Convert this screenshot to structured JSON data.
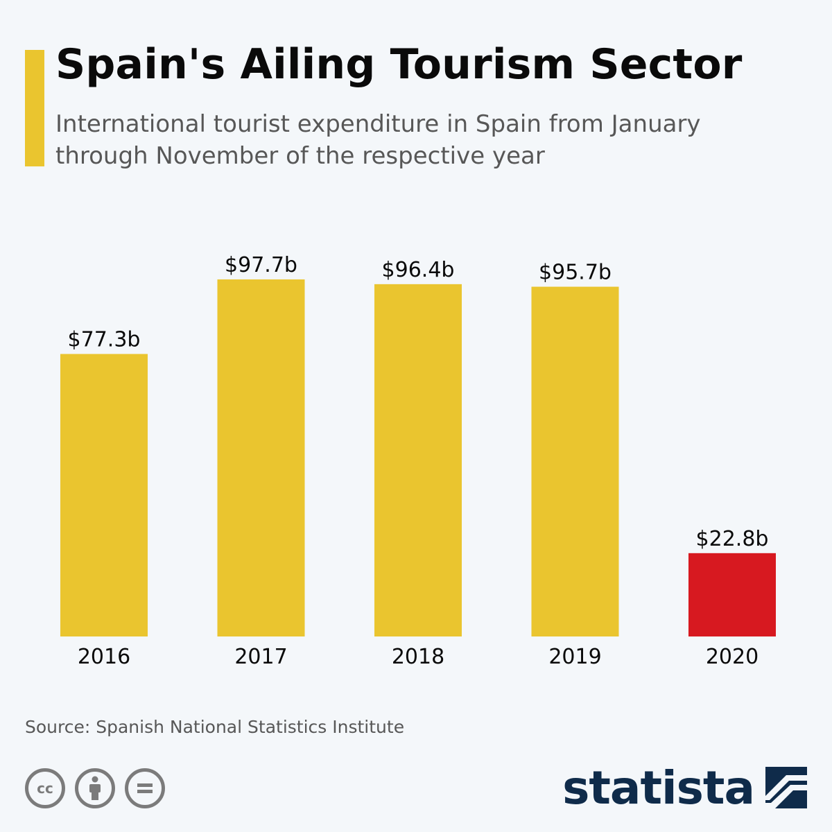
{
  "header": {
    "title": "Spain's Ailing Tourism Sector",
    "subtitle": "International tourist expenditure in Spain from January through November of the respective year"
  },
  "chart_data": {
    "type": "bar",
    "categories": [
      "2016",
      "2017",
      "2018",
      "2019",
      "2020"
    ],
    "values": [
      77.3,
      97.7,
      96.4,
      95.7,
      22.8
    ],
    "value_labels": [
      "$77.3b",
      "$97.7b",
      "$96.4b",
      "$95.7b",
      "$22.8b"
    ],
    "title": "",
    "xlabel": "",
    "ylabel": "",
    "ylim": [
      0,
      97.7
    ],
    "grid": false,
    "bar_colors": [
      "#eac52f",
      "#eac52f",
      "#eac52f",
      "#eac52f",
      "#d71920"
    ]
  },
  "footer": {
    "source": "Source: Spanish National Statistics Institute",
    "brand": "statista"
  },
  "license_icons": [
    {
      "name": "cc-icon",
      "glyph": "cc"
    },
    {
      "name": "attribution-icon",
      "glyph": ""
    },
    {
      "name": "no-derivatives-icon",
      "glyph": ""
    }
  ],
  "colors": {
    "accent": "#eac52f",
    "highlight": "#d71920",
    "brand": "#0f2b4a",
    "background": "#f4f7fa"
  }
}
